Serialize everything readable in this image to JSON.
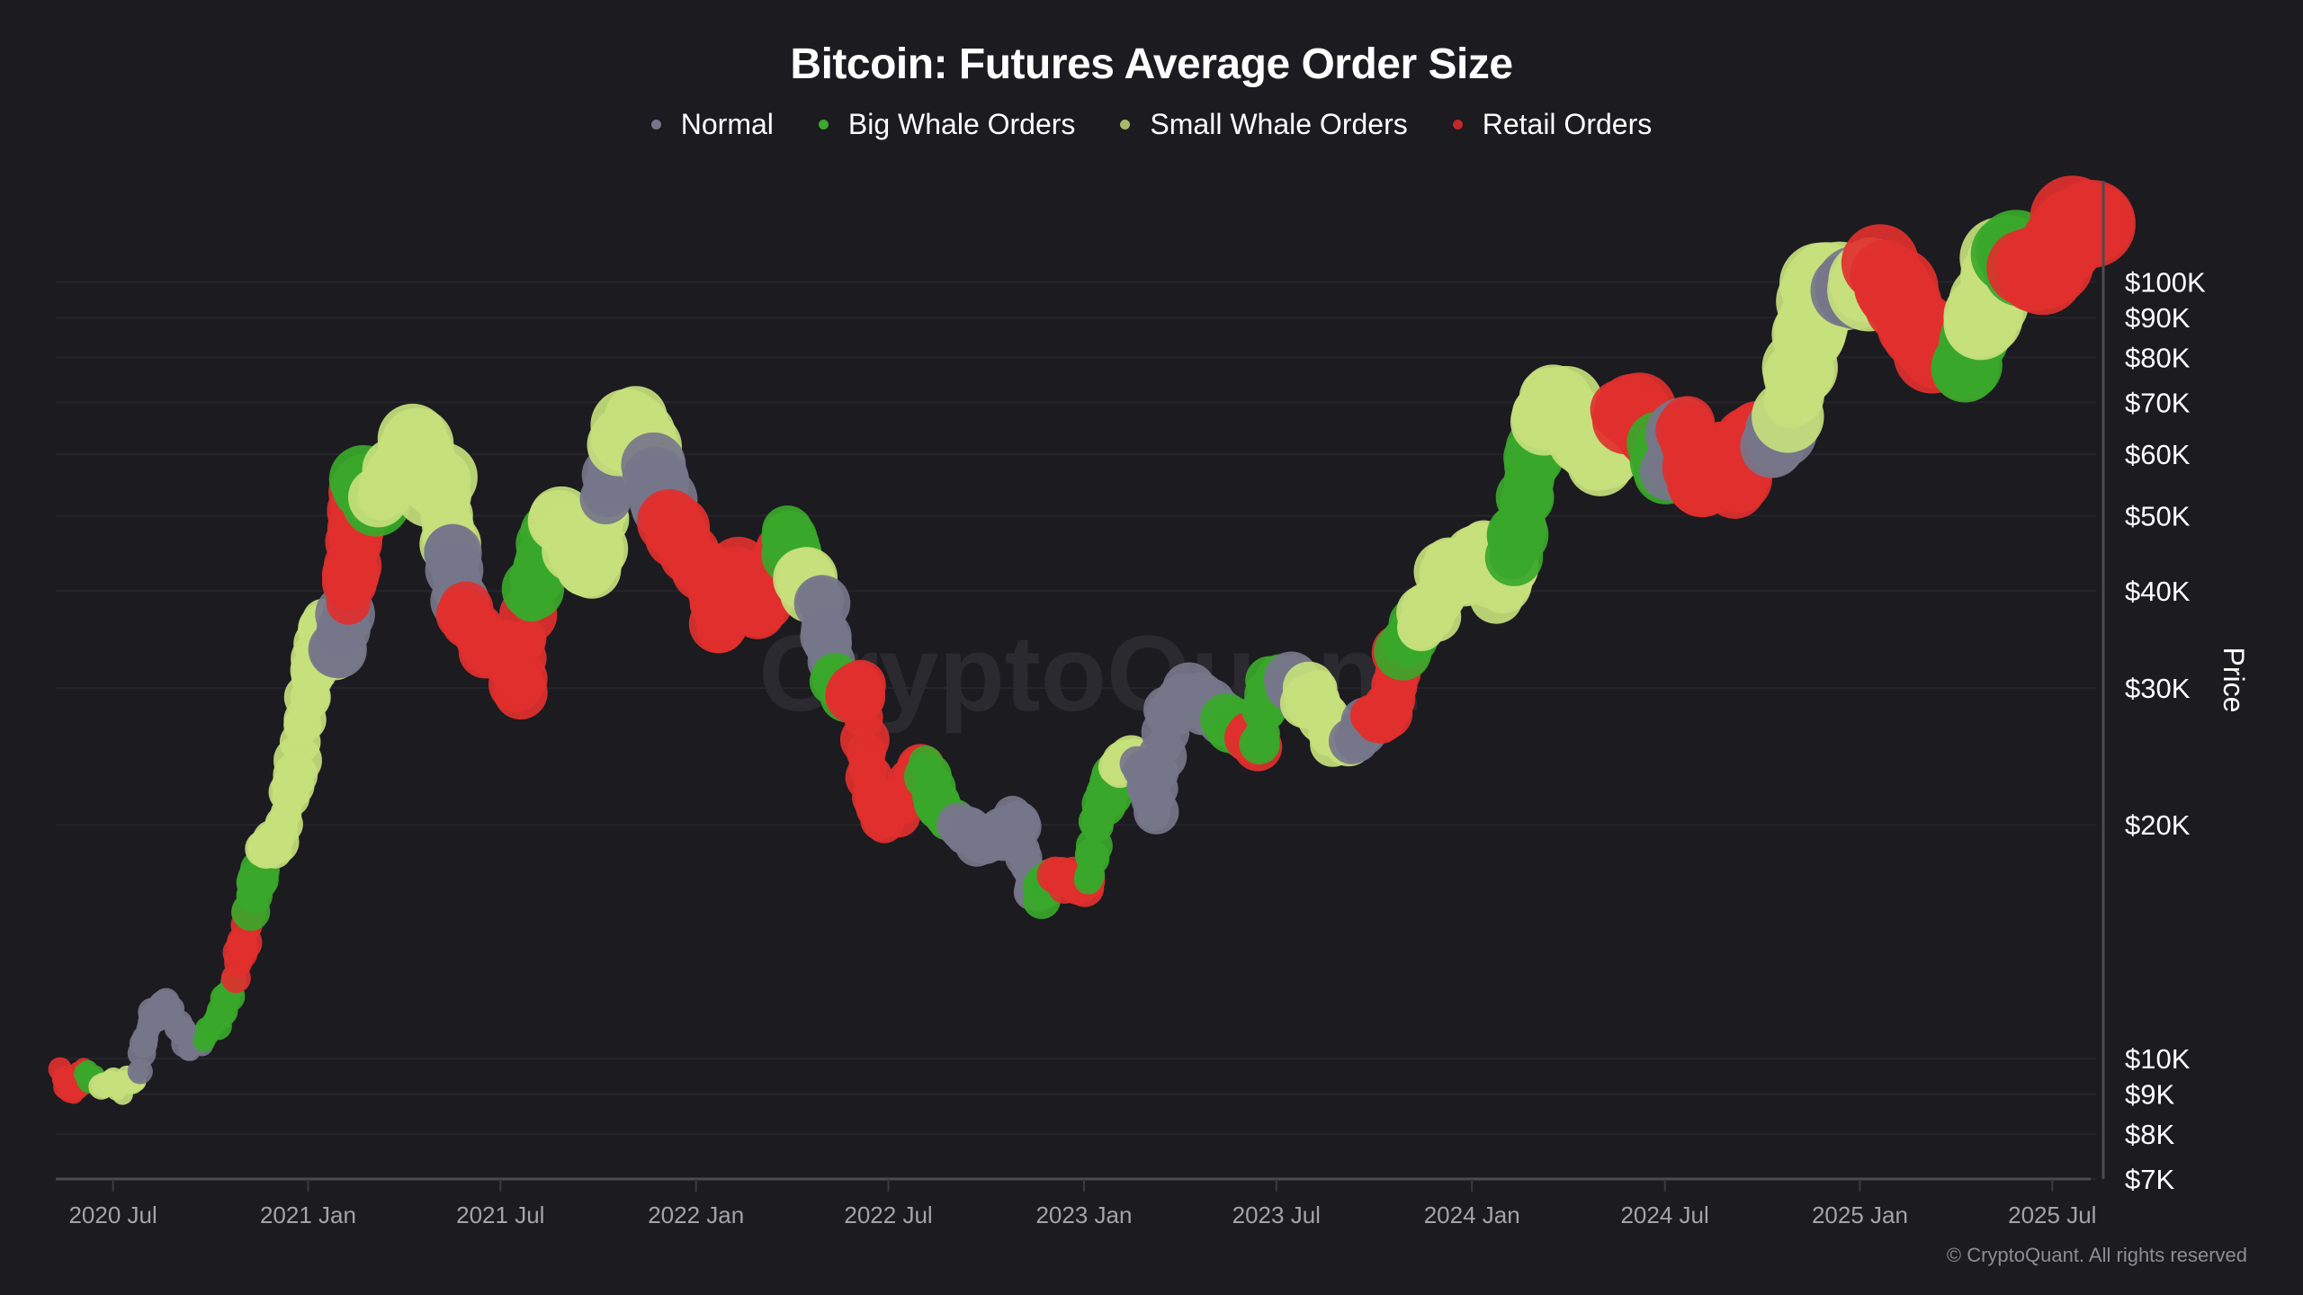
{
  "chart_data": {
    "type": "scatter",
    "title": "Bitcoin: Futures Average Order Size",
    "ylabel": "Price",
    "xlabel": "",
    "yscale": "log",
    "ylim": [
      7000,
      135000
    ],
    "xlim": [
      "2020-05-08",
      "2025-08-18"
    ],
    "grid": true,
    "legend_placement": "top-center",
    "watermark": "CryptoQuant",
    "copyright": "© CryptoQuant. All rights reserved",
    "legend": [
      {
        "key": "normal",
        "label": "Normal",
        "color": "#76768a"
      },
      {
        "key": "big",
        "label": "Big Whale Orders",
        "color": "#3aa82a"
      },
      {
        "key": "small",
        "label": "Small Whale Orders",
        "color": "#c6e07c"
      },
      {
        "key": "retail",
        "label": "Retail Orders",
        "color": "#e0302e"
      }
    ],
    "yticks": [
      {
        "value": 100000,
        "label": "$100K"
      },
      {
        "value": 90000,
        "label": "$90K"
      },
      {
        "value": 80000,
        "label": "$80K"
      },
      {
        "value": 70000,
        "label": "$70K"
      },
      {
        "value": 60000,
        "label": "$60K"
      },
      {
        "value": 50000,
        "label": "$50K"
      },
      {
        "value": 40000,
        "label": "$40K"
      },
      {
        "value": 30000,
        "label": "$30K"
      },
      {
        "value": 20000,
        "label": "$20K"
      },
      {
        "value": 10000,
        "label": "$10K"
      },
      {
        "value": 9000,
        "label": "$9K"
      },
      {
        "value": 8000,
        "label": "$8K"
      },
      {
        "value": 7000,
        "label": "$7K"
      }
    ],
    "xticks": [
      {
        "value": "2020-07-01",
        "label": "2020 Jul"
      },
      {
        "value": "2021-01-01",
        "label": "2021 Jan"
      },
      {
        "value": "2021-07-01",
        "label": "2021 Jul"
      },
      {
        "value": "2022-01-01",
        "label": "2022 Jan"
      },
      {
        "value": "2022-07-01",
        "label": "2022 Jul"
      },
      {
        "value": "2023-01-01",
        "label": "2023 Jan"
      },
      {
        "value": "2023-07-01",
        "label": "2023 Jul"
      },
      {
        "value": "2024-01-01",
        "label": "2024 Jan"
      },
      {
        "value": "2024-07-01",
        "label": "2024 Jul"
      },
      {
        "value": "2025-01-01",
        "label": "2025 Jan"
      },
      {
        "value": "2025-07-01",
        "label": "2025 Jul"
      }
    ],
    "points": [
      [
        "2020-05-12",
        9700,
        "retail"
      ],
      [
        "2020-05-25",
        9000,
        "retail"
      ],
      [
        "2020-06-05",
        9600,
        "big"
      ],
      [
        "2020-06-20",
        9400,
        "small"
      ],
      [
        "2020-07-10",
        9200,
        "small"
      ],
      [
        "2020-07-25",
        9500,
        "normal"
      ],
      [
        "2020-08-05",
        11300,
        "normal"
      ],
      [
        "2020-08-20",
        11800,
        "normal"
      ],
      [
        "2020-09-10",
        10400,
        "normal"
      ],
      [
        "2020-09-25",
        10700,
        "big"
      ],
      [
        "2020-10-10",
        11400,
        "big"
      ],
      [
        "2020-10-25",
        13000,
        "retail"
      ],
      [
        "2020-11-08",
        15500,
        "big"
      ],
      [
        "2020-11-20",
        18200,
        "small"
      ],
      [
        "2020-12-05",
        19200,
        "small"
      ],
      [
        "2020-12-20",
        23500,
        "small"
      ],
      [
        "2021-01-05",
        31000,
        "small"
      ],
      [
        "2021-01-15",
        37000,
        "small"
      ],
      [
        "2021-01-28",
        33000,
        "normal"
      ],
      [
        "2021-02-08",
        39000,
        "retail"
      ],
      [
        "2021-02-15",
        48000,
        "retail"
      ],
      [
        "2021-02-22",
        55000,
        "big"
      ],
      [
        "2021-03-08",
        52000,
        "small"
      ],
      [
        "2021-03-25",
        58000,
        "small"
      ],
      [
        "2021-04-12",
        62000,
        "small"
      ],
      [
        "2021-04-25",
        54000,
        "small"
      ],
      [
        "2021-05-08",
        56000,
        "small"
      ],
      [
        "2021-05-16",
        45000,
        "normal"
      ],
      [
        "2021-05-25",
        38000,
        "retail"
      ],
      [
        "2021-06-10",
        36000,
        "retail"
      ],
      [
        "2021-06-22",
        33000,
        "retail"
      ],
      [
        "2021-07-05",
        34000,
        "retail"
      ],
      [
        "2021-07-20",
        30000,
        "retail"
      ],
      [
        "2021-07-30",
        40000,
        "big"
      ],
      [
        "2021-08-10",
        45000,
        "big"
      ],
      [
        "2021-08-25",
        49000,
        "small"
      ],
      [
        "2021-09-10",
        45000,
        "small"
      ],
      [
        "2021-09-25",
        42000,
        "small"
      ],
      [
        "2021-10-08",
        53000,
        "normal"
      ],
      [
        "2021-10-20",
        63000,
        "small"
      ],
      [
        "2021-11-08",
        66000,
        "small"
      ],
      [
        "2021-11-22",
        57000,
        "normal"
      ],
      [
        "2021-12-05",
        49000,
        "retail"
      ],
      [
        "2021-12-20",
        47000,
        "retail"
      ],
      [
        "2022-01-10",
        42000,
        "retail"
      ],
      [
        "2022-01-24",
        36000,
        "retail"
      ],
      [
        "2022-02-10",
        43000,
        "retail"
      ],
      [
        "2022-02-24",
        38000,
        "retail"
      ],
      [
        "2022-03-10",
        39000,
        "retail"
      ],
      [
        "2022-03-28",
        47000,
        "big"
      ],
      [
        "2022-04-10",
        42000,
        "small"
      ],
      [
        "2022-04-28",
        39000,
        "normal"
      ],
      [
        "2022-05-10",
        31000,
        "big"
      ],
      [
        "2022-05-25",
        29500,
        "retail"
      ],
      [
        "2022-06-05",
        30000,
        "retail"
      ],
      [
        "2022-06-14",
        22000,
        "retail"
      ],
      [
        "2022-06-25",
        20500,
        "retail"
      ],
      [
        "2022-07-10",
        21000,
        "retail"
      ],
      [
        "2022-07-25",
        23000,
        "retail"
      ],
      [
        "2022-08-05",
        23500,
        "big"
      ],
      [
        "2022-08-20",
        21000,
        "big"
      ],
      [
        "2022-09-05",
        19800,
        "normal"
      ],
      [
        "2022-09-25",
        19200,
        "normal"
      ],
      [
        "2022-10-15",
        19300,
        "normal"
      ],
      [
        "2022-10-30",
        20600,
        "normal"
      ],
      [
        "2022-11-10",
        17000,
        "normal"
      ],
      [
        "2022-11-20",
        16300,
        "big"
      ],
      [
        "2022-12-05",
        17000,
        "retail"
      ],
      [
        "2022-12-25",
        16800,
        "retail"
      ],
      [
        "2023-01-05",
        16900,
        "big"
      ],
      [
        "2023-01-15",
        21000,
        "big"
      ],
      [
        "2023-02-01",
        23200,
        "small"
      ],
      [
        "2023-02-20",
        24500,
        "normal"
      ],
      [
        "2023-03-10",
        20500,
        "normal"
      ],
      [
        "2023-03-20",
        27500,
        "normal"
      ],
      [
        "2023-04-10",
        29500,
        "normal"
      ],
      [
        "2023-04-25",
        28500,
        "normal"
      ],
      [
        "2023-05-15",
        27000,
        "big"
      ],
      [
        "2023-06-05",
        26500,
        "retail"
      ],
      [
        "2023-06-15",
        25500,
        "big"
      ],
      [
        "2023-06-25",
        30500,
        "big"
      ],
      [
        "2023-07-10",
        30500,
        "normal"
      ],
      [
        "2023-07-28",
        29300,
        "small"
      ],
      [
        "2023-08-10",
        29400,
        "small"
      ],
      [
        "2023-08-20",
        26000,
        "small"
      ],
      [
        "2023-09-10",
        25800,
        "normal"
      ],
      [
        "2023-09-28",
        27000,
        "retail"
      ],
      [
        "2023-10-10",
        27500,
        "retail"
      ],
      [
        "2023-10-20",
        30000,
        "retail"
      ],
      [
        "2023-10-28",
        34000,
        "big"
      ],
      [
        "2023-11-12",
        36500,
        "small"
      ],
      [
        "2023-11-28",
        37500,
        "small"
      ],
      [
        "2023-12-10",
        43000,
        "small"
      ],
      [
        "2023-12-28",
        42500,
        "small"
      ],
      [
        "2024-01-12",
        46000,
        "small"
      ],
      [
        "2024-01-24",
        40000,
        "small"
      ],
      [
        "2024-02-08",
        44000,
        "big"
      ],
      [
        "2024-02-20",
        52000,
        "big"
      ],
      [
        "2024-03-05",
        66000,
        "small"
      ],
      [
        "2024-03-15",
        70000,
        "small"
      ],
      [
        "2024-04-01",
        68000,
        "small"
      ],
      [
        "2024-04-18",
        62000,
        "small"
      ],
      [
        "2024-05-01",
        58000,
        "small"
      ],
      [
        "2024-05-20",
        68000,
        "retail"
      ],
      [
        "2024-06-10",
        67000,
        "retail"
      ],
      [
        "2024-06-25",
        61000,
        "big"
      ],
      [
        "2024-07-05",
        56000,
        "normal"
      ],
      [
        "2024-07-20",
        66000,
        "retail"
      ],
      [
        "2024-08-05",
        54000,
        "retail"
      ],
      [
        "2024-08-20",
        60000,
        "retail"
      ],
      [
        "2024-09-05",
        55000,
        "retail"
      ],
      [
        "2024-09-25",
        64000,
        "retail"
      ],
      [
        "2024-10-10",
        61000,
        "normal"
      ],
      [
        "2024-10-25",
        68000,
        "small"
      ],
      [
        "2024-11-10",
        80000,
        "small"
      ],
      [
        "2024-11-22",
        97000,
        "small"
      ],
      [
        "2024-12-10",
        100000,
        "small"
      ],
      [
        "2024-12-20",
        97000,
        "normal"
      ],
      [
        "2025-01-05",
        98000,
        "small"
      ],
      [
        "2025-01-20",
        104000,
        "retail"
      ],
      [
        "2025-02-05",
        98000,
        "retail"
      ],
      [
        "2025-02-25",
        86000,
        "retail"
      ],
      [
        "2025-03-10",
        82000,
        "retail"
      ],
      [
        "2025-03-28",
        84000,
        "retail"
      ],
      [
        "2025-04-08",
        77000,
        "big"
      ],
      [
        "2025-04-22",
        88000,
        "small"
      ],
      [
        "2025-05-10",
        103000,
        "small"
      ],
      [
        "2025-05-22",
        110000,
        "big"
      ],
      [
        "2025-06-05",
        105000,
        "retail"
      ],
      [
        "2025-06-22",
        101000,
        "retail"
      ],
      [
        "2025-07-10",
        112000,
        "retail"
      ],
      [
        "2025-07-20",
        118000,
        "retail"
      ],
      [
        "2025-08-10",
        117000,
        "retail"
      ]
    ]
  }
}
